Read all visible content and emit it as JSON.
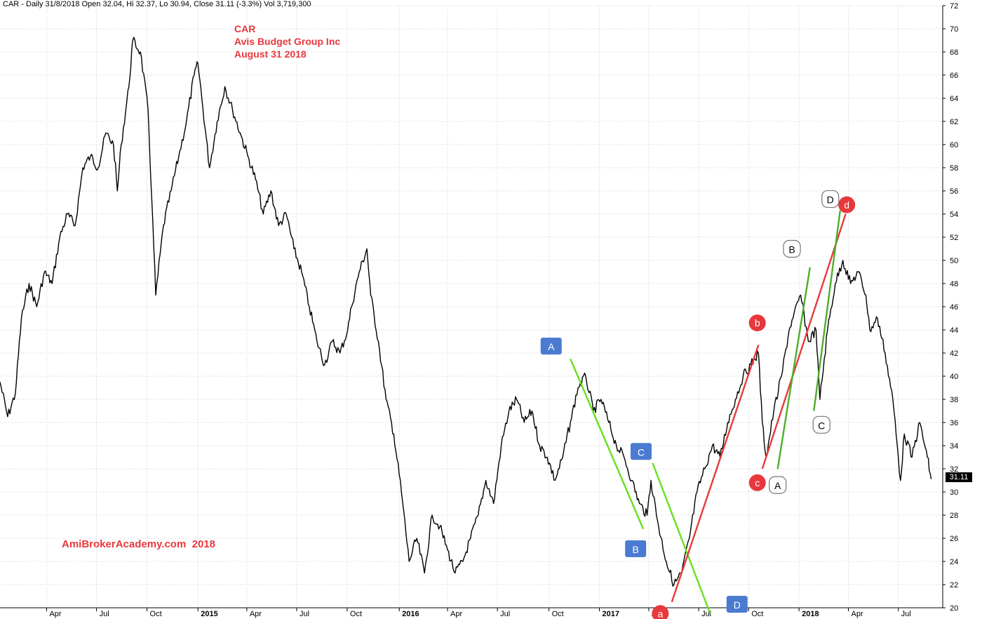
{
  "header_text": "CAR - Daily 31/8/2018 Open 32.04, Hi 32.37, Lo 30.94, Close 31.11 (-3.3%) Vol 3,719,300",
  "title_lines": [
    "CAR",
    "Avis Budget Group Inc",
    "August 31 2018"
  ],
  "watermark": "AmiBrokerAcademy.com  2018",
  "last_price_label": "31.11",
  "colors": {
    "title": "#e8383d",
    "grid": "#cfcfcf",
    "price": "#000000",
    "green": "#66e01e",
    "red": "#e8383d",
    "darkgreen": "#4caf2a",
    "blue_label": "#4a7bd0"
  },
  "chart_data": {
    "type": "line",
    "title": "CAR",
    "subtitle": "Avis Budget Group Inc",
    "ylim": [
      20,
      72
    ],
    "yticks": [
      20,
      22,
      24,
      26,
      28,
      30,
      32,
      34,
      36,
      38,
      40,
      42,
      44,
      46,
      48,
      50,
      52,
      54,
      56,
      58,
      60,
      62,
      64,
      66,
      68,
      70,
      72
    ],
    "xlim": [
      "2014-01-06",
      "2018-09-21"
    ],
    "xticks": [
      {
        "date": "2014-04-01",
        "label": "Apr",
        "year": false
      },
      {
        "date": "2014-07-01",
        "label": "Jul",
        "year": false
      },
      {
        "date": "2014-10-01",
        "label": "Oct",
        "year": false
      },
      {
        "date": "2015-01-02",
        "label": "2015",
        "year": true
      },
      {
        "date": "2015-04-01",
        "label": "Apr",
        "year": false
      },
      {
        "date": "2015-07-01",
        "label": "Jul",
        "year": false
      },
      {
        "date": "2015-10-01",
        "label": "Oct",
        "year": false
      },
      {
        "date": "2016-01-04",
        "label": "2016",
        "year": true
      },
      {
        "date": "2016-04-01",
        "label": "Apr",
        "year": false
      },
      {
        "date": "2016-07-01",
        "label": "Jul",
        "year": false
      },
      {
        "date": "2016-10-03",
        "label": "Oct",
        "year": false
      },
      {
        "date": "2017-01-03",
        "label": "2017",
        "year": true
      },
      {
        "date": "2017-04-03",
        "label": "Apr",
        "year": false
      },
      {
        "date": "2017-07-03",
        "label": "Jul",
        "year": false
      },
      {
        "date": "2017-10-02",
        "label": "Oct",
        "year": false
      },
      {
        "date": "2018-01-02",
        "label": "2018",
        "year": true
      },
      {
        "date": "2018-04-02",
        "label": "Apr",
        "year": false
      },
      {
        "date": "2018-07-02",
        "label": "Jul",
        "year": false
      }
    ],
    "series": [
      {
        "points": [
          [
            "2014-01-06",
            39.5
          ],
          [
            "2014-01-20",
            36.5
          ],
          [
            "2014-02-03",
            38.5
          ],
          [
            "2014-02-14",
            45
          ],
          [
            "2014-02-28",
            48
          ],
          [
            "2014-03-14",
            46
          ],
          [
            "2014-03-28",
            49
          ],
          [
            "2014-04-11",
            48
          ],
          [
            "2014-04-25",
            52
          ],
          [
            "2014-05-09",
            54
          ],
          [
            "2014-05-23",
            53
          ],
          [
            "2014-06-06",
            58
          ],
          [
            "2014-06-20",
            59
          ],
          [
            "2014-07-04",
            58
          ],
          [
            "2014-07-18",
            61
          ],
          [
            "2014-08-01",
            60
          ],
          [
            "2014-08-08",
            56
          ],
          [
            "2014-08-15",
            60
          ],
          [
            "2014-08-29",
            65
          ],
          [
            "2014-09-05",
            69
          ],
          [
            "2014-09-19",
            68
          ],
          [
            "2014-10-03",
            63
          ],
          [
            "2014-10-10",
            55
          ],
          [
            "2014-10-17",
            47
          ],
          [
            "2014-10-31",
            53
          ],
          [
            "2014-11-14",
            56
          ],
          [
            "2014-11-28",
            59
          ],
          [
            "2014-12-12",
            62
          ],
          [
            "2014-12-26",
            66
          ],
          [
            "2015-01-02",
            67
          ],
          [
            "2015-01-09",
            64
          ],
          [
            "2015-01-23",
            58
          ],
          [
            "2015-02-06",
            62
          ],
          [
            "2015-02-20",
            65
          ],
          [
            "2015-03-06",
            63
          ],
          [
            "2015-03-20",
            61
          ],
          [
            "2015-04-03",
            59
          ],
          [
            "2015-04-17",
            57
          ],
          [
            "2015-05-01",
            54
          ],
          [
            "2015-05-15",
            56
          ],
          [
            "2015-05-29",
            53
          ],
          [
            "2015-06-12",
            54
          ],
          [
            "2015-06-26",
            51
          ],
          [
            "2015-07-10",
            49
          ],
          [
            "2015-07-24",
            46
          ],
          [
            "2015-08-07",
            43
          ],
          [
            "2015-08-21",
            41
          ],
          [
            "2015-09-04",
            43
          ],
          [
            "2015-09-18",
            42
          ],
          [
            "2015-10-02",
            44
          ],
          [
            "2015-10-09",
            46
          ],
          [
            "2015-10-23",
            49
          ],
          [
            "2015-11-06",
            51
          ],
          [
            "2015-11-13",
            47
          ],
          [
            "2015-11-27",
            43
          ],
          [
            "2015-12-11",
            38
          ],
          [
            "2015-12-25",
            35
          ],
          [
            "2016-01-08",
            30
          ],
          [
            "2016-01-22",
            24
          ],
          [
            "2016-02-05",
            26
          ],
          [
            "2016-02-19",
            23
          ],
          [
            "2016-03-04",
            28
          ],
          [
            "2016-03-18",
            27
          ],
          [
            "2016-04-01",
            25
          ],
          [
            "2016-04-15",
            23
          ],
          [
            "2016-04-29",
            24
          ],
          [
            "2016-05-13",
            26
          ],
          [
            "2016-05-27",
            28
          ],
          [
            "2016-06-10",
            31
          ],
          [
            "2016-06-24",
            29
          ],
          [
            "2016-07-08",
            34
          ],
          [
            "2016-07-22",
            37
          ],
          [
            "2016-08-05",
            38
          ],
          [
            "2016-08-19",
            36
          ],
          [
            "2016-09-02",
            37
          ],
          [
            "2016-09-16",
            34
          ],
          [
            "2016-09-30",
            33
          ],
          [
            "2016-10-14",
            31
          ],
          [
            "2016-10-28",
            33
          ],
          [
            "2016-11-11",
            36
          ],
          [
            "2016-11-25",
            39
          ],
          [
            "2016-12-09",
            40
          ],
          [
            "2016-12-23",
            37
          ],
          [
            "2017-01-06",
            38
          ],
          [
            "2017-01-20",
            36
          ],
          [
            "2017-02-03",
            34
          ],
          [
            "2017-02-17",
            33
          ],
          [
            "2017-03-03",
            31
          ],
          [
            "2017-03-17",
            29
          ],
          [
            "2017-03-31",
            28
          ],
          [
            "2017-04-07",
            31
          ],
          [
            "2017-04-21",
            27
          ],
          [
            "2017-05-05",
            24
          ],
          [
            "2017-05-19",
            22
          ],
          [
            "2017-06-02",
            23
          ],
          [
            "2017-06-16",
            26
          ],
          [
            "2017-06-30",
            30
          ],
          [
            "2017-07-14",
            32
          ],
          [
            "2017-07-28",
            34
          ],
          [
            "2017-08-11",
            33
          ],
          [
            "2017-08-25",
            36
          ],
          [
            "2017-09-08",
            38
          ],
          [
            "2017-09-22",
            40
          ],
          [
            "2017-10-06",
            41
          ],
          [
            "2017-10-20",
            42
          ],
          [
            "2017-10-27",
            36
          ],
          [
            "2017-11-03",
            33
          ],
          [
            "2017-11-17",
            37
          ],
          [
            "2017-12-01",
            40
          ],
          [
            "2017-12-15",
            44
          ],
          [
            "2017-12-22",
            45
          ],
          [
            "2018-01-05",
            47
          ],
          [
            "2018-01-19",
            43
          ],
          [
            "2018-02-02",
            44
          ],
          [
            "2018-02-09",
            38
          ],
          [
            "2018-02-23",
            44
          ],
          [
            "2018-03-09",
            48
          ],
          [
            "2018-03-23",
            50
          ],
          [
            "2018-04-06",
            48
          ],
          [
            "2018-04-20",
            49
          ],
          [
            "2018-05-04",
            47
          ],
          [
            "2018-05-11",
            44
          ],
          [
            "2018-05-25",
            45
          ],
          [
            "2018-06-08",
            42
          ],
          [
            "2018-06-22",
            38
          ],
          [
            "2018-07-06",
            31
          ],
          [
            "2018-07-13",
            35
          ],
          [
            "2018-07-27",
            33
          ],
          [
            "2018-08-10",
            36
          ],
          [
            "2018-08-24",
            33
          ],
          [
            "2018-08-31",
            31.11
          ]
        ]
      }
    ],
    "annotations": {
      "lines": [
        {
          "color": "green",
          "from": [
            "2016-11-11",
            41.5
          ],
          "to": [
            "2017-03-24",
            26.8
          ]
        },
        {
          "color": "green",
          "from": [
            "2017-04-10",
            32.5
          ],
          "to": [
            "2017-07-24",
            19.5
          ]
        },
        {
          "color": "red",
          "from": [
            "2017-05-15",
            20.5
          ],
          "to": [
            "2017-10-20",
            42.7
          ]
        },
        {
          "color": "red",
          "from": [
            "2017-10-27",
            32
          ],
          "to": [
            "2018-03-28",
            54
          ]
        },
        {
          "color": "darkgreen",
          "from": [
            "2017-11-24",
            32
          ],
          "to": [
            "2018-01-22",
            49.4
          ]
        },
        {
          "color": "darkgreen",
          "from": [
            "2018-01-29",
            37
          ],
          "to": [
            "2018-03-18",
            54.3
          ]
        }
      ],
      "labels": [
        {
          "text": "A",
          "style": "blue",
          "at": [
            "2016-10-07",
            42.6
          ]
        },
        {
          "text": "B",
          "style": "blue",
          "at": [
            "2017-03-10",
            25.1
          ]
        },
        {
          "text": "C",
          "style": "blue",
          "at": [
            "2017-03-20",
            33.5
          ]
        },
        {
          "text": "D",
          "style": "blue",
          "at": [
            "2017-09-11",
            20.3
          ]
        },
        {
          "text": "a",
          "style": "red",
          "at": [
            "2017-04-24",
            19.5
          ]
        },
        {
          "text": "b",
          "style": "red",
          "at": [
            "2017-10-18",
            44.6
          ]
        },
        {
          "text": "c",
          "style": "red",
          "at": [
            "2017-10-18",
            30.8
          ]
        },
        {
          "text": "d",
          "style": "red",
          "at": [
            "2018-03-30",
            54.8
          ]
        },
        {
          "text": "A",
          "style": "white",
          "at": [
            "2017-11-24",
            30.6
          ]
        },
        {
          "text": "B",
          "style": "white",
          "at": [
            "2017-12-20",
            51
          ]
        },
        {
          "text": "C",
          "style": "white",
          "at": [
            "2018-02-12",
            35.8
          ]
        },
        {
          "text": "D",
          "style": "white",
          "at": [
            "2018-02-28",
            55.3
          ]
        }
      ]
    }
  }
}
